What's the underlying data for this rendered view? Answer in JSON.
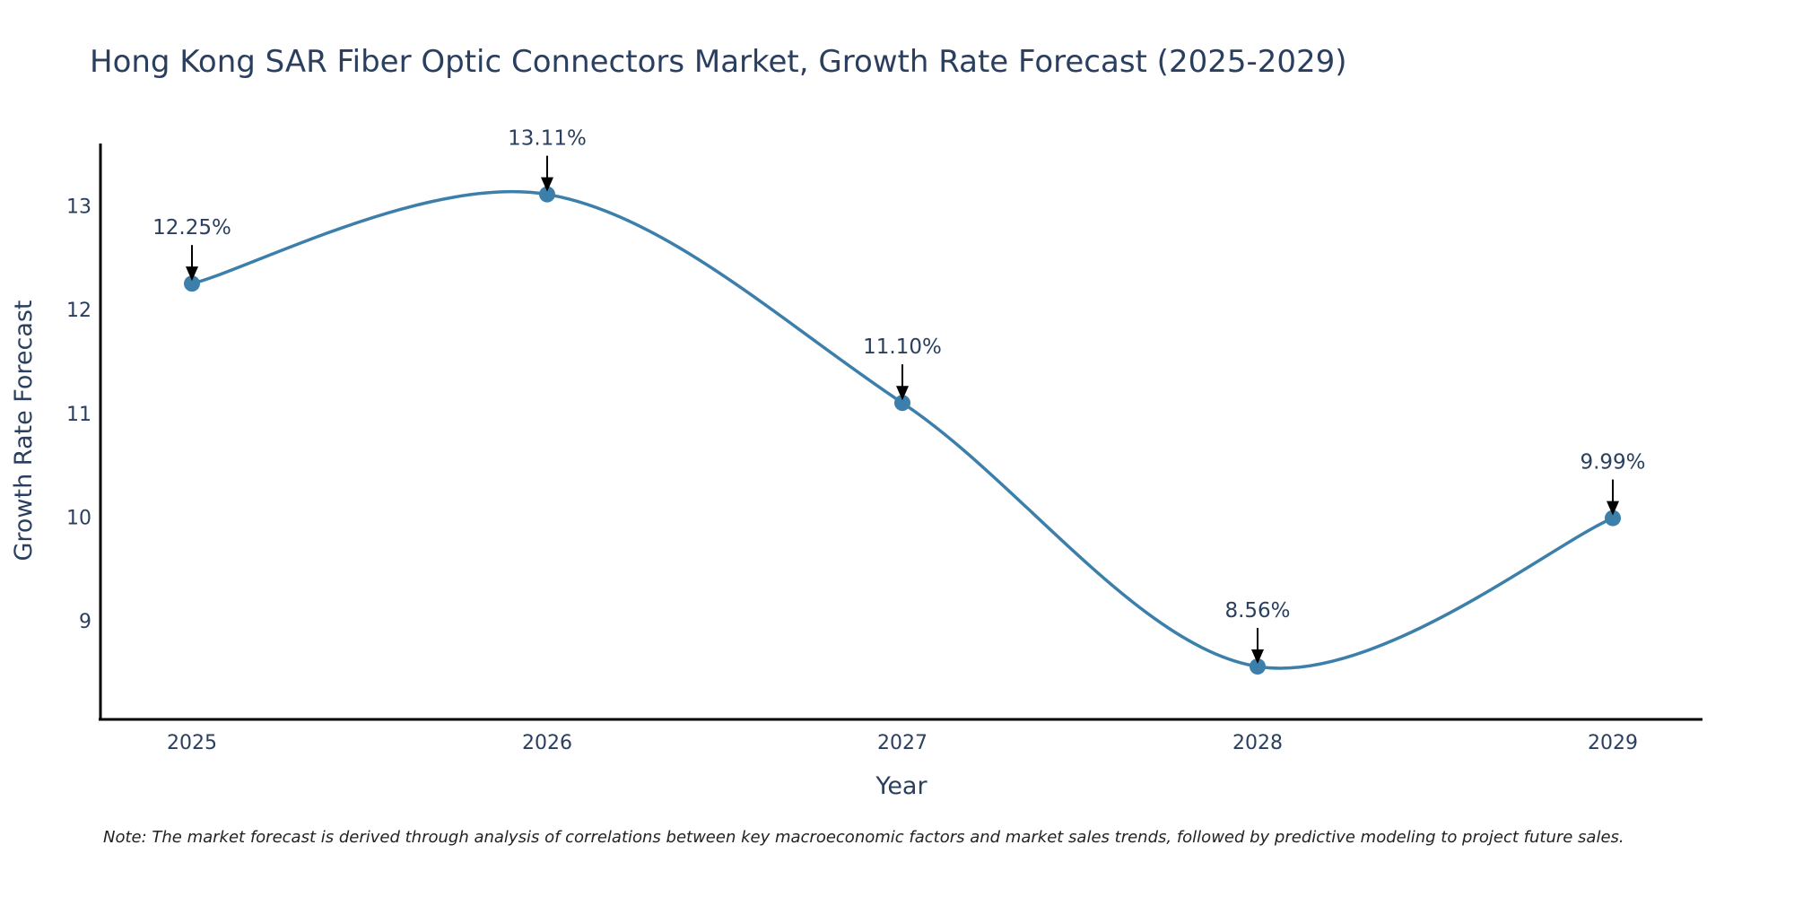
{
  "chart_data": {
    "type": "line",
    "title": "Hong Kong SAR Fiber Optic Connectors Market, Growth Rate Forecast (2025-2029)",
    "xlabel": "Year",
    "ylabel": "Growth Rate Forecast",
    "x": [
      "2025",
      "2026",
      "2027",
      "2028",
      "2029"
    ],
    "values": [
      12.25,
      13.11,
      11.1,
      8.56,
      9.99
    ],
    "data_labels": [
      "12.25%",
      "13.11%",
      "11.10%",
      "8.56%",
      "9.99%"
    ],
    "y_ticks": [
      9,
      10,
      11,
      12,
      13
    ],
    "ylim": [
      8.05,
      13.6
    ],
    "grid": false,
    "line_shape": "spline",
    "series_color": "#3d7fab",
    "axis_color": "#000000",
    "text_color": "#2a3f5f",
    "note": "Note: The market forecast is derived through analysis of correlations between key macroeconomic factors and market sales trends, followed by predictive modeling to project future sales."
  }
}
